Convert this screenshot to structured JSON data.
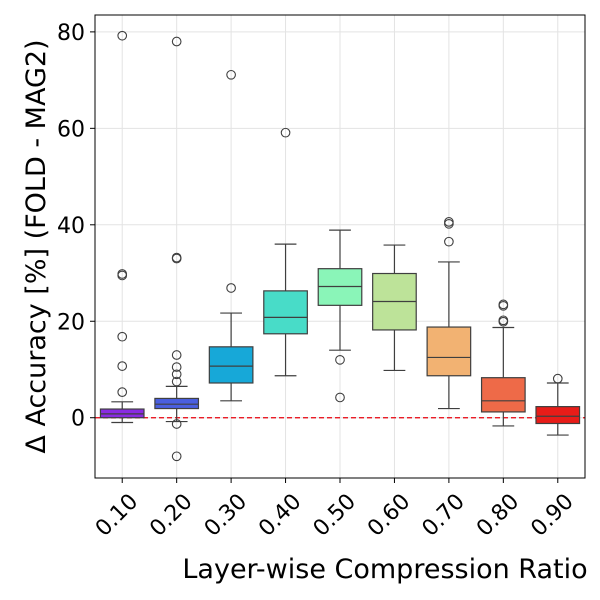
{
  "chart_data": {
    "type": "box",
    "title": "",
    "xlabel": "Layer-wise Compression Ratio",
    "ylabel": "Δ Accuracy [%] (FOLD - MAG2)",
    "ylim": [
      -12.5,
      83.5
    ],
    "yticks": [
      0,
      20,
      40,
      60,
      80
    ],
    "grid": true,
    "reference_line": {
      "y": 0,
      "color": "#e8000b",
      "style": "dashed"
    },
    "categories": [
      "0.10",
      "0.20",
      "0.30",
      "0.40",
      "0.50",
      "0.60",
      "0.70",
      "0.80",
      "0.90"
    ],
    "boxes": [
      {
        "label": "0.10",
        "color": "#8a2be2",
        "whisker_low": -1.0,
        "q1": 0.0,
        "median": 0.8,
        "q3": 1.8,
        "whisker_high": 3.3,
        "outliers": [
          79.2,
          29.8,
          29.5,
          16.8,
          10.7,
          5.3
        ]
      },
      {
        "label": "0.20",
        "color": "#4a5fe0",
        "whisker_low": -0.8,
        "q1": 1.9,
        "median": 2.8,
        "q3": 4.0,
        "whisker_high": 6.5,
        "outliers": [
          78.0,
          33.2,
          33.0,
          13.0,
          10.5,
          9.0,
          7.5,
          -1.3,
          -8.0
        ]
      },
      {
        "label": "0.30",
        "color": "#17a8d8",
        "whisker_low": 3.5,
        "q1": 7.2,
        "median": 10.7,
        "q3": 14.7,
        "whisker_high": 21.7,
        "outliers": [
          71.1,
          26.9
        ]
      },
      {
        "label": "0.40",
        "color": "#48dcc8",
        "whisker_low": 8.7,
        "q1": 17.4,
        "median": 20.8,
        "q3": 26.3,
        "whisker_high": 36.0,
        "outliers": [
          59.1
        ]
      },
      {
        "label": "0.50",
        "color": "#8af5b8",
        "whisker_low": 14.0,
        "q1": 23.3,
        "median": 27.2,
        "q3": 30.9,
        "whisker_high": 38.9,
        "outliers": [
          12.0,
          4.2
        ]
      },
      {
        "label": "0.60",
        "color": "#bde399",
        "whisker_low": 9.8,
        "q1": 18.2,
        "median": 24.1,
        "q3": 29.9,
        "whisker_high": 35.8,
        "outliers": []
      },
      {
        "label": "0.70",
        "color": "#f2b272",
        "whisker_low": 1.9,
        "q1": 8.7,
        "median": 12.5,
        "q3": 18.8,
        "whisker_high": 32.3,
        "outliers": [
          40.6,
          40.2,
          36.5
        ]
      },
      {
        "label": "0.80",
        "color": "#ee6a48",
        "whisker_low": -1.7,
        "q1": 1.2,
        "median": 3.5,
        "q3": 8.3,
        "whisker_high": 18.7,
        "outliers": [
          23.5,
          23.2,
          20.2,
          19.9
        ]
      },
      {
        "label": "0.90",
        "color": "#e81c18",
        "whisker_low": -3.6,
        "q1": -1.2,
        "median": 0.3,
        "q3": 2.3,
        "whisker_high": 7.2,
        "outliers": [
          8.1
        ]
      }
    ]
  }
}
